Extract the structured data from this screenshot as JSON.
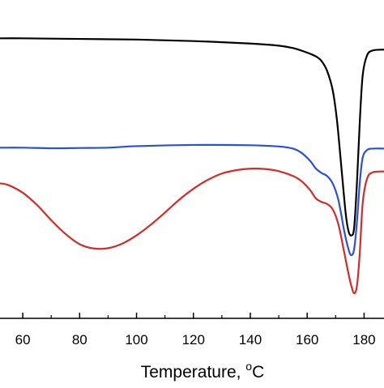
{
  "chart_data": {
    "type": "line",
    "title": "",
    "xlabel": "Temperature, ",
    "xlabel_unit_sup": "o",
    "xlabel_unit": "C",
    "ylabel": "",
    "xlim": [
      52,
      187
    ],
    "ylim": [
      0,
      100
    ],
    "grid": false,
    "legend": "none",
    "x_ticks": [
      60,
      80,
      100,
      120,
      140,
      160,
      180
    ],
    "series": [
      {
        "color": "#000000",
        "points": [
          [
            52,
            92.2
          ],
          [
            60,
            92.2
          ],
          [
            80,
            92.0
          ],
          [
            100,
            91.8
          ],
          [
            120,
            91.3
          ],
          [
            140,
            90.5
          ],
          [
            150,
            89.8
          ],
          [
            155,
            89.0
          ],
          [
            160,
            87.5
          ],
          [
            163,
            86.3
          ],
          [
            165,
            84.8
          ],
          [
            167,
            81.5
          ],
          [
            169,
            75.0
          ],
          [
            170.5,
            65.0
          ],
          [
            172,
            50.0
          ],
          [
            173.5,
            35.0
          ],
          [
            174.5,
            29.0
          ],
          [
            175.5,
            27.5
          ],
          [
            176.5,
            30.0
          ],
          [
            177.5,
            45.0
          ],
          [
            178.5,
            65.0
          ],
          [
            179.5,
            80.0
          ],
          [
            181,
            86.5
          ],
          [
            183,
            88.2
          ],
          [
            187,
            88.5
          ]
        ]
      },
      {
        "color": "#2b4fd8",
        "points": [
          [
            52,
            56.3
          ],
          [
            60,
            56.3
          ],
          [
            70,
            56.1
          ],
          [
            80,
            56.2
          ],
          [
            90,
            56.3
          ],
          [
            100,
            56.8
          ],
          [
            120,
            57.2
          ],
          [
            140,
            57.1
          ],
          [
            150,
            56.7
          ],
          [
            155,
            56.0
          ],
          [
            158,
            54.6
          ],
          [
            161,
            52.0
          ],
          [
            163,
            49.5
          ],
          [
            165,
            48.0
          ],
          [
            167,
            47.0
          ],
          [
            169,
            44.5
          ],
          [
            171,
            39.0
          ],
          [
            173,
            29.0
          ],
          [
            174.5,
            23.0
          ],
          [
            175.5,
            21.0
          ],
          [
            176.5,
            23.0
          ],
          [
            177.5,
            32.0
          ],
          [
            178.5,
            45.0
          ],
          [
            179.5,
            53.0
          ],
          [
            181,
            55.5
          ],
          [
            183,
            56.0
          ],
          [
            187,
            56.0
          ]
        ]
      },
      {
        "color": "#d42a2a",
        "points": [
          [
            52,
            44.6
          ],
          [
            55,
            44.0
          ],
          [
            60,
            41.5
          ],
          [
            65,
            37.5
          ],
          [
            70,
            32.5
          ],
          [
            75,
            28.0
          ],
          [
            80,
            24.6
          ],
          [
            85,
            23.2
          ],
          [
            90,
            23.3
          ],
          [
            95,
            24.8
          ],
          [
            100,
            27.5
          ],
          [
            105,
            31.0
          ],
          [
            110,
            35.0
          ],
          [
            115,
            39.2
          ],
          [
            120,
            42.8
          ],
          [
            125,
            45.7
          ],
          [
            130,
            47.8
          ],
          [
            135,
            48.9
          ],
          [
            140,
            49.4
          ],
          [
            145,
            49.3
          ],
          [
            150,
            48.6
          ],
          [
            155,
            47.0
          ],
          [
            158,
            45.3
          ],
          [
            161,
            42.4
          ],
          [
            163,
            39.7
          ],
          [
            165,
            38.5
          ],
          [
            167,
            37.8
          ],
          [
            169,
            36.0
          ],
          [
            171,
            31.0
          ],
          [
            173,
            22.0
          ],
          [
            174.5,
            15.0
          ],
          [
            175.5,
            11.0
          ],
          [
            176.5,
            8.5
          ],
          [
            177.5,
            11.0
          ],
          [
            178.5,
            22.0
          ],
          [
            179.5,
            38.0
          ],
          [
            181,
            46.0
          ],
          [
            183,
            48.2
          ],
          [
            187,
            48.5
          ]
        ]
      }
    ]
  }
}
